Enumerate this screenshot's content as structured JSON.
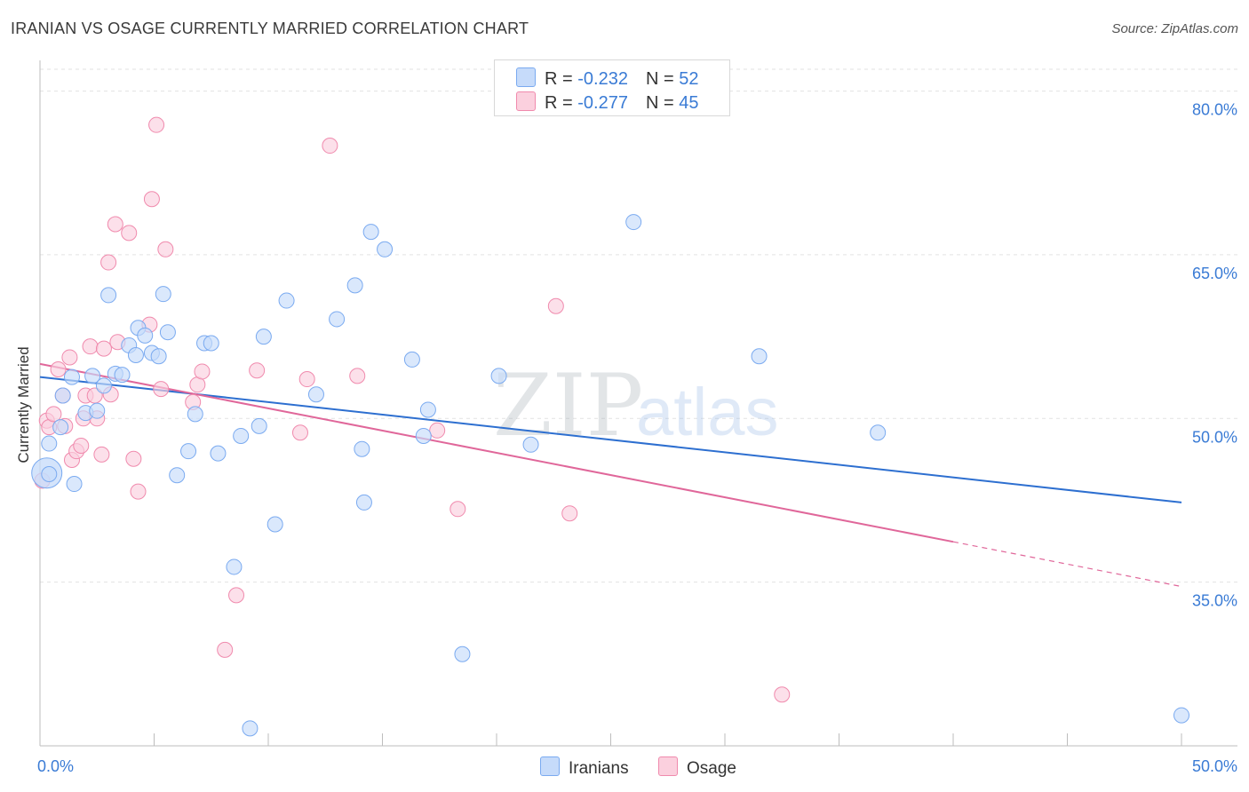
{
  "header": {
    "title": "IRANIAN VS OSAGE CURRENTLY MARRIED CORRELATION CHART",
    "source": "Source: ZipAtlas.com"
  },
  "legend_top": {
    "rows": [
      {
        "r_label": "R = ",
        "r_value": "-0.232",
        "n_label": "N = ",
        "n_value": "52"
      },
      {
        "r_label": "R = ",
        "r_value": "-0.277",
        "n_label": "N = ",
        "n_value": "45"
      }
    ]
  },
  "watermark": {
    "zip": "ZIP",
    "atlas": "atlas"
  },
  "chart_data": {
    "type": "scatter",
    "title": "IRANIAN VS OSAGE CURRENTLY MARRIED CORRELATION CHART",
    "xlabel": "",
    "ylabel": "Currently Married",
    "xlim": [
      0,
      50
    ],
    "ylim": [
      20,
      82
    ],
    "x_tick_labels": [
      "0.0%",
      "50.0%"
    ],
    "y_ticks": [
      35,
      50,
      65,
      80
    ],
    "y_tick_labels": [
      "35.0%",
      "50.0%",
      "65.0%",
      "80.0%"
    ],
    "grid": true,
    "colors": {
      "iranians": "#7aaaf0",
      "iranians_fill": "#c6dbfa",
      "iranians_line": "#2d6fd0",
      "osage": "#f08aad",
      "osage_fill": "#fbd0de",
      "osage_line": "#e0679a",
      "axis_label": "#3a7bd5"
    },
    "series": [
      {
        "name": "Iranians",
        "stats": {
          "r": -0.232,
          "n": 52
        },
        "trend": {
          "x0": 0,
          "y0": 53.8,
          "x1": 50,
          "y1": 42.3
        },
        "points": [
          [
            0.4,
            47.7
          ],
          [
            0.4,
            44.9
          ],
          [
            0.9,
            49.2
          ],
          [
            1.0,
            52.1
          ],
          [
            1.4,
            53.8
          ],
          [
            1.5,
            44.0
          ],
          [
            2.0,
            50.5
          ],
          [
            2.3,
            53.9
          ],
          [
            2.5,
            50.7
          ],
          [
            2.8,
            53.0
          ],
          [
            3.0,
            61.3
          ],
          [
            3.3,
            54.1
          ],
          [
            3.6,
            54.0
          ],
          [
            3.9,
            56.7
          ],
          [
            4.2,
            55.8
          ],
          [
            4.3,
            58.3
          ],
          [
            4.6,
            57.6
          ],
          [
            4.9,
            56.0
          ],
          [
            5.2,
            55.7
          ],
          [
            5.4,
            61.4
          ],
          [
            5.6,
            57.9
          ],
          [
            6.0,
            44.8
          ],
          [
            6.5,
            47.0
          ],
          [
            6.8,
            50.4
          ],
          [
            7.2,
            56.9
          ],
          [
            7.5,
            56.9
          ],
          [
            7.8,
            46.8
          ],
          [
            8.5,
            36.4
          ],
          [
            8.8,
            48.4
          ],
          [
            9.2,
            21.6
          ],
          [
            9.6,
            49.3
          ],
          [
            9.8,
            57.5
          ],
          [
            10.3,
            40.3
          ],
          [
            10.8,
            60.8
          ],
          [
            12.1,
            52.2
          ],
          [
            13.0,
            59.1
          ],
          [
            13.8,
            62.2
          ],
          [
            14.1,
            47.2
          ],
          [
            14.2,
            42.3
          ],
          [
            14.5,
            67.1
          ],
          [
            15.1,
            65.5
          ],
          [
            16.3,
            55.4
          ],
          [
            16.8,
            48.4
          ],
          [
            17.0,
            50.8
          ],
          [
            18.5,
            28.4
          ],
          [
            20.1,
            53.9
          ],
          [
            21.5,
            47.6
          ],
          [
            26.0,
            68.0
          ],
          [
            31.5,
            55.7
          ],
          [
            36.7,
            48.7
          ],
          [
            50.0,
            22.8
          ]
        ],
        "large_points": [
          [
            0.3,
            45.0
          ]
        ]
      },
      {
        "name": "Osage",
        "stats": {
          "r": -0.277,
          "n": 45
        },
        "trend": {
          "x0": 0,
          "y0": 55.0,
          "x1": 40.0,
          "y1": 38.7
        },
        "trend_dashed": {
          "x0": 40.0,
          "y0": 38.7,
          "x1": 50,
          "y1": 34.6
        },
        "points": [
          [
            0.1,
            44.3
          ],
          [
            0.3,
            49.8
          ],
          [
            0.4,
            49.2
          ],
          [
            0.6,
            50.4
          ],
          [
            0.8,
            54.5
          ],
          [
            1.0,
            52.1
          ],
          [
            1.1,
            49.3
          ],
          [
            1.3,
            55.6
          ],
          [
            1.4,
            46.2
          ],
          [
            1.6,
            47.0
          ],
          [
            1.8,
            47.5
          ],
          [
            1.9,
            50.0
          ],
          [
            2.0,
            52.1
          ],
          [
            2.2,
            56.6
          ],
          [
            2.4,
            52.1
          ],
          [
            2.5,
            50.0
          ],
          [
            2.7,
            46.7
          ],
          [
            2.8,
            56.4
          ],
          [
            3.0,
            64.3
          ],
          [
            3.1,
            52.2
          ],
          [
            3.3,
            67.8
          ],
          [
            3.4,
            57.0
          ],
          [
            3.9,
            67.0
          ],
          [
            4.1,
            46.3
          ],
          [
            4.3,
            43.3
          ],
          [
            4.8,
            58.6
          ],
          [
            4.9,
            70.1
          ],
          [
            5.1,
            76.9
          ],
          [
            5.3,
            52.7
          ],
          [
            5.5,
            65.5
          ],
          [
            6.7,
            51.5
          ],
          [
            6.9,
            53.1
          ],
          [
            7.1,
            54.3
          ],
          [
            8.1,
            28.8
          ],
          [
            8.6,
            33.8
          ],
          [
            9.5,
            54.4
          ],
          [
            11.4,
            48.7
          ],
          [
            11.7,
            53.6
          ],
          [
            12.7,
            75.0
          ],
          [
            13.9,
            53.9
          ],
          [
            17.4,
            48.9
          ],
          [
            18.3,
            41.7
          ],
          [
            22.6,
            60.3
          ],
          [
            23.2,
            41.3
          ],
          [
            32.5,
            24.7
          ]
        ],
        "large_points": []
      }
    ]
  },
  "bottom_legend": {
    "items": [
      "Iranians",
      "Osage"
    ]
  }
}
